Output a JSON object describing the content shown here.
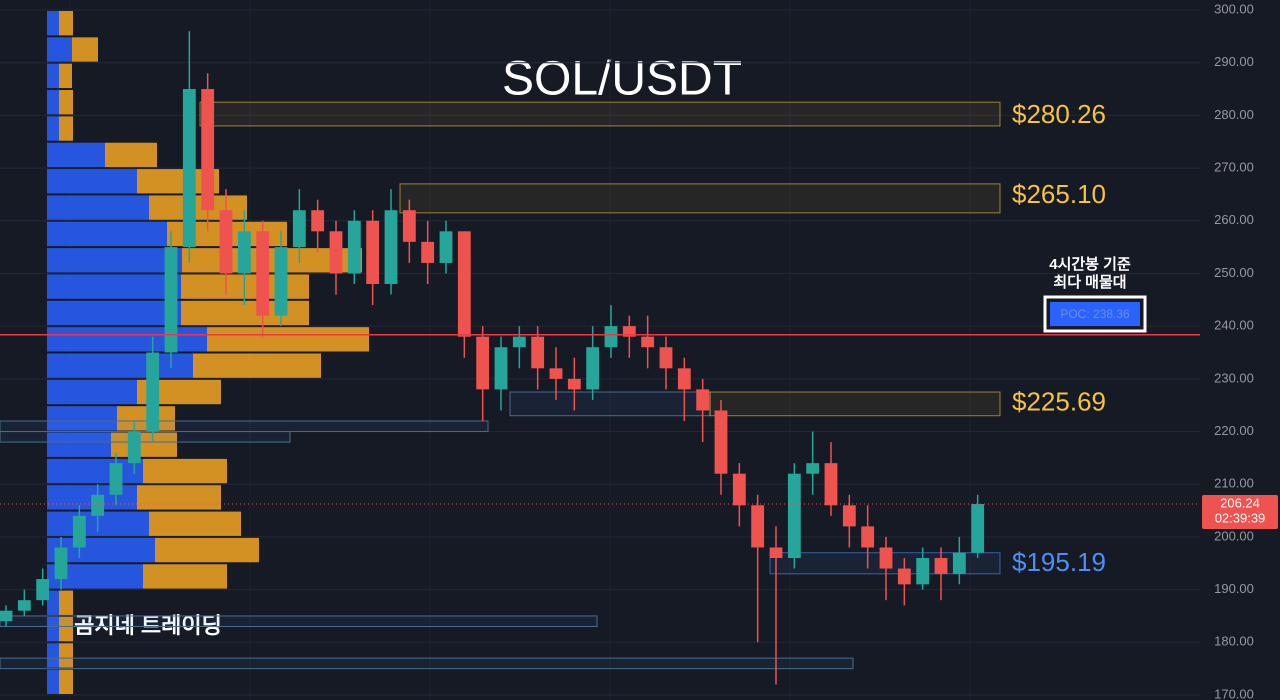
{
  "chart_data": {
    "type": "candlestick",
    "title": "SOL/USDT",
    "watermark": "곰지네 트레이딩",
    "annotation": [
      "4시간봉 기준",
      "최다 매물대"
    ],
    "ylim": [
      170,
      300
    ],
    "yticks": [
      {
        "value": 170,
        "label": "170.00"
      },
      {
        "value": 180,
        "label": "180.00"
      },
      {
        "value": 190,
        "label": "190.00"
      },
      {
        "value": 200,
        "label": "200.00"
      },
      {
        "value": 210,
        "label": "210.00"
      },
      {
        "value": 220,
        "label": "220.00"
      },
      {
        "value": 230,
        "label": "230.00"
      },
      {
        "value": 240,
        "label": "240.00"
      },
      {
        "value": 250,
        "label": "250.00"
      },
      {
        "value": 260,
        "label": "260.00"
      },
      {
        "value": 270,
        "label": "270.00"
      },
      {
        "value": 280,
        "label": "280.00"
      },
      {
        "value": 290,
        "label": "290.00"
      },
      {
        "value": 300,
        "label": "300.00"
      }
    ],
    "grid": true,
    "up_color": "#26a69a",
    "down_color": "#ef5350",
    "candles": [
      [
        184,
        187,
        183,
        186
      ],
      [
        186,
        190,
        185,
        188
      ],
      [
        188,
        194,
        187,
        192
      ],
      [
        192,
        200,
        190,
        198
      ],
      [
        198,
        206,
        196,
        204
      ],
      [
        204,
        210,
        201,
        208
      ],
      [
        208,
        216,
        206,
        214
      ],
      [
        214,
        222,
        212,
        220
      ],
      [
        220,
        238,
        218,
        235
      ],
      [
        235,
        258,
        232,
        255
      ],
      [
        255,
        296,
        252,
        285
      ],
      [
        285,
        288,
        258,
        262
      ],
      [
        262,
        266,
        246,
        250
      ],
      [
        250,
        262,
        244,
        258
      ],
      [
        258,
        260,
        238,
        242
      ],
      [
        242,
        258,
        240,
        255
      ],
      [
        255,
        266,
        252,
        262
      ],
      [
        262,
        264,
        254,
        258
      ],
      [
        258,
        260,
        246,
        250
      ],
      [
        250,
        262,
        248,
        260
      ],
      [
        260,
        262,
        244,
        248
      ],
      [
        248,
        266,
        246,
        262
      ],
      [
        262,
        264,
        252,
        256
      ],
      [
        256,
        260,
        248,
        252
      ],
      [
        252,
        260,
        250,
        258
      ],
      [
        258,
        258,
        234,
        238
      ],
      [
        238,
        240,
        222,
        228
      ],
      [
        228,
        238,
        224,
        236
      ],
      [
        236,
        240,
        232,
        238
      ],
      [
        238,
        240,
        228,
        232
      ],
      [
        232,
        236,
        226,
        230
      ],
      [
        230,
        234,
        224,
        228
      ],
      [
        228,
        240,
        226,
        236
      ],
      [
        236,
        244,
        234,
        240
      ],
      [
        240,
        242,
        234,
        238
      ],
      [
        238,
        242,
        232,
        236
      ],
      [
        236,
        238,
        228,
        232
      ],
      [
        232,
        234,
        222,
        228
      ],
      [
        228,
        230,
        218,
        224
      ],
      [
        224,
        226,
        208,
        212
      ],
      [
        212,
        214,
        202,
        206
      ],
      [
        206,
        208,
        180,
        198
      ],
      [
        198,
        202,
        172,
        196
      ],
      [
        196,
        214,
        194,
        212
      ],
      [
        212,
        220,
        208,
        214
      ],
      [
        214,
        218,
        204,
        206
      ],
      [
        206,
        208,
        198,
        202
      ],
      [
        202,
        206,
        194,
        198
      ],
      [
        198,
        200,
        188,
        194
      ],
      [
        194,
        196,
        187,
        191
      ],
      [
        191,
        198,
        190,
        196
      ],
      [
        196,
        198,
        188,
        193
      ],
      [
        193,
        200,
        191,
        197
      ],
      [
        197,
        208,
        196,
        206.24
      ]
    ],
    "volume_profile": {
      "prices": [
        297.5,
        292.5,
        287.5,
        282.5,
        277.5,
        272.5,
        267.5,
        262.5,
        257.5,
        252.5,
        247.5,
        242.5,
        237.5,
        232.5,
        227.5,
        222.5,
        217.5,
        212.5,
        207.5,
        202.5,
        197.5,
        192.5,
        187.5,
        182.5,
        177.5,
        172.5
      ],
      "buy": [
        12,
        25,
        12,
        12,
        12,
        58,
        90,
        102,
        120,
        135,
        134,
        134,
        160,
        146,
        90,
        70,
        64,
        96,
        90,
        102,
        108,
        96,
        12,
        12,
        12,
        12
      ],
      "sell": [
        14,
        26,
        13,
        14,
        14,
        52,
        82,
        98,
        120,
        180,
        128,
        128,
        162,
        128,
        84,
        58,
        66,
        84,
        84,
        92,
        104,
        84,
        14,
        14,
        14,
        14
      ],
      "buy_color": "#2962ff",
      "sell_color": "#f5a623"
    },
    "levels": [
      {
        "label": {
          "value": 280.26,
          "label": "$280.26"
        },
        "range": [
          278,
          282.5
        ],
        "color": "#f5c242"
      },
      {
        "label": {
          "value": 265.1,
          "label": "$265.10"
        },
        "range": [
          261.5,
          267
        ],
        "color": "#f5c242"
      },
      {
        "label": {
          "value": 225.69,
          "label": "$225.69"
        },
        "range": [
          223,
          227.5
        ],
        "color": "#f5c242"
      },
      {
        "label": {
          "value": 195.19,
          "label": "$195.19"
        },
        "range": [
          193,
          197
        ],
        "color": "#4e8ef7"
      }
    ],
    "zones": [
      [
        220,
        222
      ],
      [
        218,
        220
      ],
      [
        183,
        185
      ],
      [
        175,
        177
      ],
      [
        223,
        227.5
      ]
    ],
    "poc": {
      "value": 238.36,
      "label": "POC: 238.36",
      "color": "#f23645"
    },
    "last_price": {
      "value": 206.24,
      "label": "206.24"
    },
    "countdown": "02:39:39"
  }
}
